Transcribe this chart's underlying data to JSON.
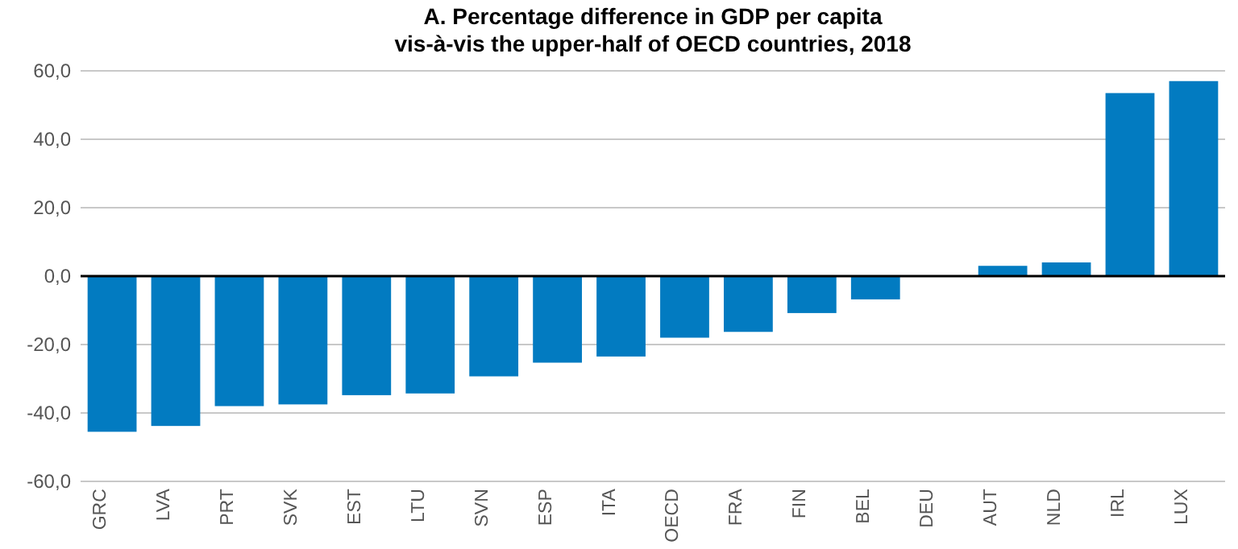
{
  "chart_data": {
    "type": "bar",
    "title": "A. Percentage difference in GDP per capita\nvis-à-vis the upper-half of OECD countries, 2018",
    "categories": [
      "GRC",
      "LVA",
      "PRT",
      "SVK",
      "EST",
      "LTU",
      "SVN",
      "ESP",
      "ITA",
      "OECD",
      "FRA",
      "FIN",
      "BEL",
      "DEU",
      "AUT",
      "NLD",
      "IRL",
      "LUX"
    ],
    "values": [
      -45.5,
      -43.8,
      -38,
      -37.5,
      -34.8,
      -34.3,
      -29.3,
      -25.3,
      -23.5,
      -18,
      -16.3,
      -10.8,
      -6.8,
      0,
      3,
      4,
      53.5,
      57
    ],
    "color": "#027bc1",
    "ylim": [
      -60,
      60
    ],
    "yticks": [
      {
        "value": -60,
        "label": "-60,0"
      },
      {
        "value": -40,
        "label": "-40,0"
      },
      {
        "value": -20,
        "label": "-20,0"
      },
      {
        "value": 0,
        "label": "0,0"
      },
      {
        "value": 20,
        "label": "20,0"
      },
      {
        "value": 40,
        "label": "40,0"
      },
      {
        "value": 60,
        "label": "60,0"
      }
    ],
    "grid": "y"
  }
}
